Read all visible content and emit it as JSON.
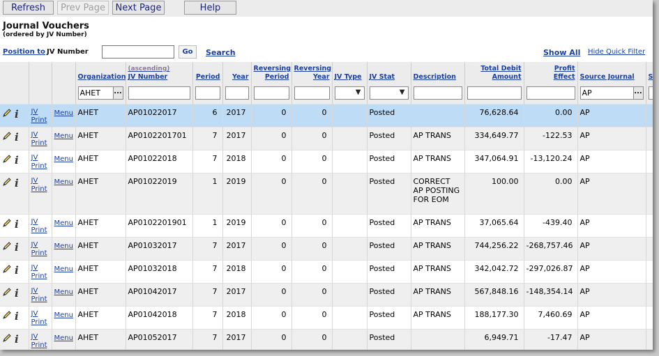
{
  "toolbar": {
    "refresh": "Refresh",
    "prev_page": "Prev Page",
    "next_page": "Next Page",
    "help": "Help"
  },
  "page": {
    "title": "Journal Vouchers",
    "subtitle": "(ordered by JV Number)"
  },
  "position": {
    "link": "Position to",
    "field": "JV Number",
    "value": "",
    "go": "Go",
    "search": "Search",
    "show_all": "Show All",
    "hide_filter": "Hide Quick Filter"
  },
  "columns": {
    "organization": "Organization",
    "jv_number_sort": "(ascending)",
    "jv_number": "JV Number",
    "period": "Period",
    "year": "Year",
    "rev_period_1": "Reversing",
    "rev_period_2": "Period",
    "rev_year_1": "Reversing",
    "rev_year_2": "Year",
    "jv_type": "JV Type",
    "jv_stat": "JV Stat",
    "description": "Description",
    "total_debit_1": "Total Debit",
    "total_debit_2": "Amount",
    "profit_1": "Profit",
    "profit_2": "Effect",
    "source_journal": "Source Journal",
    "extra": "S"
  },
  "filters": {
    "organization": "AHET",
    "source_journal": "AP",
    "lookup_button": "..."
  },
  "row_links": {
    "jv": "JV",
    "print": "Print",
    "menu": "Menu"
  },
  "rows": [
    {
      "org": "AHET",
      "jv": "AP01022017",
      "period": "6",
      "year": "2017",
      "rev_period": "0",
      "rev_year": "0",
      "type": "",
      "stat": "Posted",
      "desc": "",
      "debit": "76,628.64",
      "profit": "0.00",
      "source": "AP",
      "selected": true
    },
    {
      "org": "AHET",
      "jv": "AP0102201701",
      "period": "7",
      "year": "2017",
      "rev_period": "0",
      "rev_year": "0",
      "type": "",
      "stat": "Posted",
      "desc": "AP TRANS",
      "debit": "334,649.77",
      "profit": "-122.53",
      "source": "AP"
    },
    {
      "org": "AHET",
      "jv": "AP01022018",
      "period": "7",
      "year": "2018",
      "rev_period": "0",
      "rev_year": "0",
      "type": "",
      "stat": "Posted",
      "desc": "AP TRANS",
      "debit": "347,064.91",
      "profit": "-13,120.24",
      "source": "AP"
    },
    {
      "org": "AHET",
      "jv": "AP01022019",
      "period": "1",
      "year": "2019",
      "rev_period": "0",
      "rev_year": "0",
      "type": "",
      "stat": "Posted",
      "desc": "CORRECT AP POSTING FOR EOM",
      "debit": "100.00",
      "profit": "0.00",
      "source": "AP"
    },
    {
      "org": "AHET",
      "jv": "AP0102201901",
      "period": "1",
      "year": "2019",
      "rev_period": "0",
      "rev_year": "0",
      "type": "",
      "stat": "Posted",
      "desc": "AP TRANS",
      "debit": "37,065.64",
      "profit": "-439.40",
      "source": "AP"
    },
    {
      "org": "AHET",
      "jv": "AP01032017",
      "period": "7",
      "year": "2017",
      "rev_period": "0",
      "rev_year": "0",
      "type": "",
      "stat": "Posted",
      "desc": "AP TRANS",
      "debit": "744,256.22",
      "profit": "-268,757.46",
      "source": "AP"
    },
    {
      "org": "AHET",
      "jv": "AP01032018",
      "period": "7",
      "year": "2018",
      "rev_period": "0",
      "rev_year": "0",
      "type": "",
      "stat": "Posted",
      "desc": "AP TRANS",
      "debit": "342,042.72",
      "profit": "-297,026.87",
      "source": "AP"
    },
    {
      "org": "AHET",
      "jv": "AP01042017",
      "period": "7",
      "year": "2017",
      "rev_period": "0",
      "rev_year": "0",
      "type": "",
      "stat": "Posted",
      "desc": "AP TRANS",
      "debit": "567,848.16",
      "profit": "-148,354.14",
      "source": "AP"
    },
    {
      "org": "AHET",
      "jv": "AP01042018",
      "period": "7",
      "year": "2018",
      "rev_period": "0",
      "rev_year": "0",
      "type": "",
      "stat": "Posted",
      "desc": "AP TRANS",
      "debit": "188,177.30",
      "profit": "7,460.69",
      "source": "AP"
    },
    {
      "org": "AHET",
      "jv": "AP01052017",
      "period": "7",
      "year": "2017",
      "rev_period": "0",
      "rev_year": "0",
      "type": "",
      "stat": "Posted",
      "desc": "",
      "debit": "6,949.71",
      "profit": "-17.47",
      "source": "AP"
    }
  ]
}
